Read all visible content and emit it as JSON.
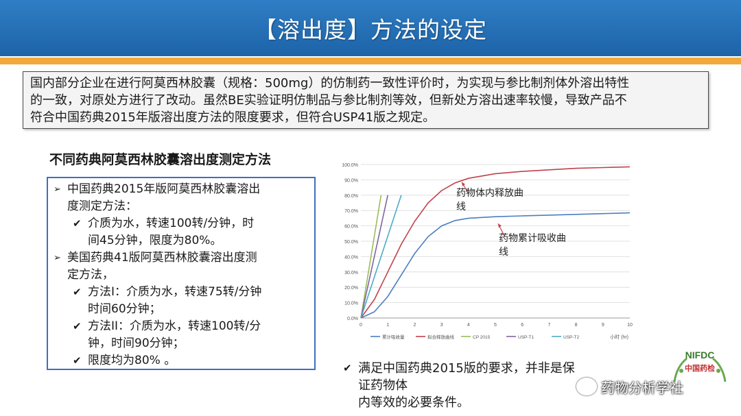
{
  "slide": {
    "title": "【溶出度】方法的设定",
    "intro": [
      "国内部分企业在进行阿莫西林胶囊（规格：500mg）的仿制药一致性评价时，为实现与参比制剂体外溶出特性",
      "的一致，对原处方进行了改动。虽然BE实验证明仿制品与参比制剂等效，但新处方溶出速率较慢，导致产品不",
      "符合中国药典2015年版溶出度方法的限度要求，但符合USP41版之规定。"
    ],
    "method_heading": "不同药典阿莫西林胶囊溶出度测定方法",
    "methods": {
      "cp_line1": "中国药典2015年版阿莫西林胶囊溶出",
      "cp_line2": "度测定方法：",
      "cp_sub_line1": "介质为水，转速100转/分钟，时",
      "cp_sub_line2": "间45分钟，限度为80%。",
      "usp_line1": "美国药典41版阿莫西林胶囊溶出度测",
      "usp_line2": "定方法，",
      "usp_m1_line1": "方法I：介质为水，转速75转/分钟",
      "usp_m1_line2": "时间60分钟；",
      "usp_m2_line1": "方法II：介质为水，转速100转/分",
      "usp_m2_line2": "钟，时间90分钟；",
      "limit": "限度均为80% 。"
    },
    "conclusion_line1": "满足中国药典2015版的要求，并非是保证药物体",
    "conclusion_line2": "内等效的必要条件。",
    "watermark": "药物分析学社",
    "logo": {
      "text_top": "NIFDC",
      "text_bottom": "中国药检"
    }
  },
  "chart_data": {
    "type": "line",
    "x": [
      0,
      1,
      2,
      3,
      4,
      5,
      6,
      7,
      8,
      9,
      10
    ],
    "x_ticks": [
      "0",
      "1",
      "2",
      "3",
      "4",
      "5",
      "6",
      "7",
      "8",
      "9",
      "10"
    ],
    "xlabel": "小时 (hr)",
    "y_ticks": [
      "0.0%",
      "10.0%",
      "20.0%",
      "30.0%",
      "40.0%",
      "50.0%",
      "60.0%",
      "70.0%",
      "80.0%",
      "90.0%",
      "100.0%"
    ],
    "xlim": [
      0,
      10
    ],
    "ylim": [
      0,
      100
    ],
    "grid": true,
    "legend_position": "bottom",
    "series": [
      {
        "name": "累计吸收量",
        "color": "#4a7ebf",
        "x": [
          0,
          0.5,
          1,
          1.5,
          2,
          2.5,
          3,
          3.5,
          4,
          5,
          6,
          7,
          8,
          9,
          10
        ],
        "y": [
          0,
          4,
          14,
          28,
          42,
          53,
          60,
          63.5,
          65,
          66,
          66.5,
          67,
          67.5,
          68,
          68.5
        ]
      },
      {
        "name": "拟合释放曲线",
        "color": "#c0404a",
        "x": [
          0,
          0.5,
          1,
          1.5,
          2,
          2.5,
          3,
          3.5,
          4,
          5,
          6,
          7,
          8,
          9,
          10
        ],
        "y": [
          0,
          12,
          30,
          48,
          63,
          75,
          83,
          88,
          91,
          94,
          95.5,
          96.5,
          97.5,
          98,
          98.5
        ]
      },
      {
        "name": "CP 2015",
        "color": "#9bbb59",
        "x": [
          0,
          0.75
        ],
        "y": [
          0,
          80
        ]
      },
      {
        "name": "USP-T1",
        "color": "#8064a2",
        "x": [
          0,
          1.0
        ],
        "y": [
          0,
          80
        ]
      },
      {
        "name": "USP-T2",
        "color": "#4bacc6",
        "x": [
          0,
          1.5
        ],
        "y": [
          0,
          80
        ]
      }
    ],
    "annotations": [
      {
        "text_line1": "药物体内释放曲",
        "text_line2": "线"
      },
      {
        "text_line1": "药物累计吸收曲",
        "text_line2": "线"
      }
    ]
  }
}
